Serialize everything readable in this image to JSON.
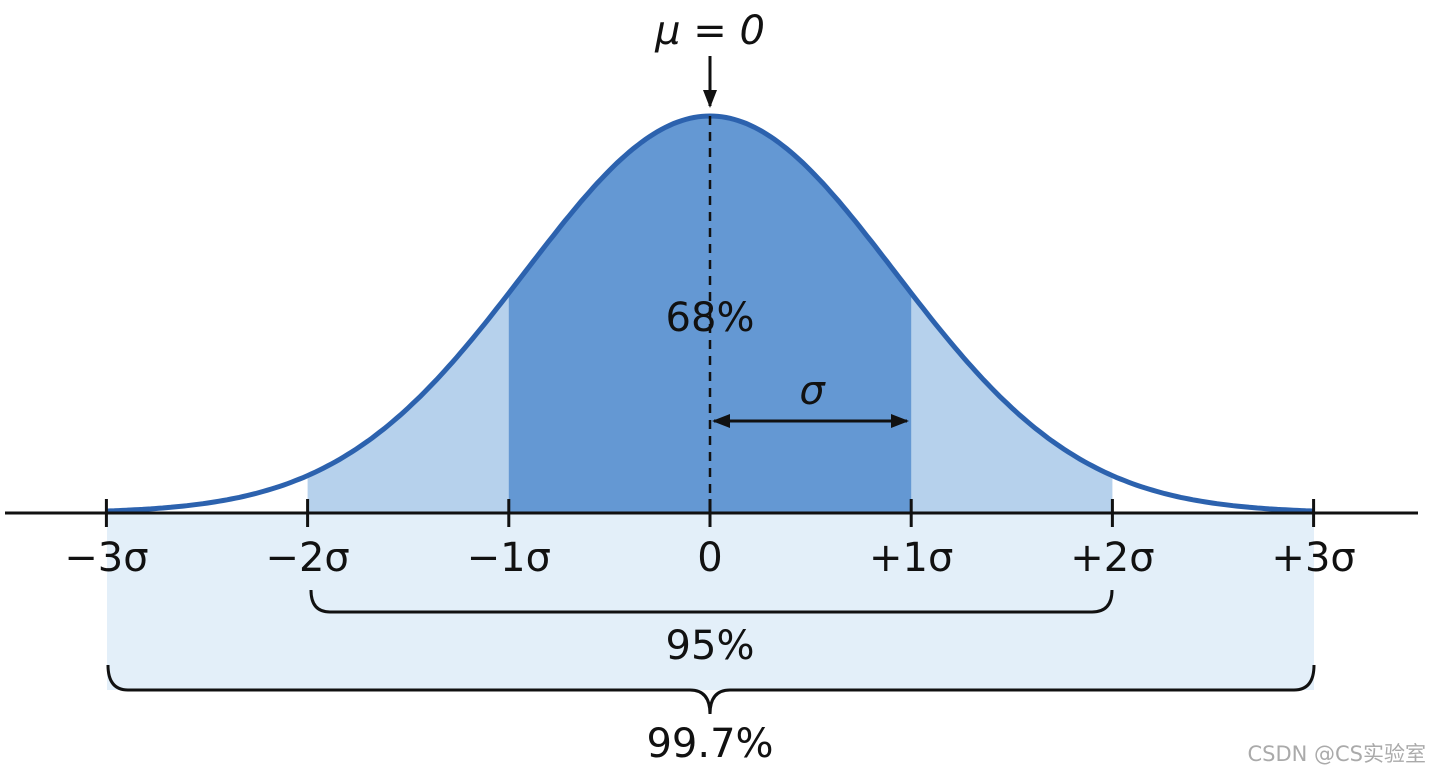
{
  "header": {
    "mean_label": "μ = 0"
  },
  "curve": {
    "center_label": "68%",
    "sigma_label": "σ"
  },
  "axis": {
    "ticks": [
      "−3σ",
      "−2σ",
      "−1σ",
      "0",
      "+1σ",
      "+2σ",
      "+3σ"
    ]
  },
  "brackets": {
    "two_sigma": "95%",
    "three_sigma": "99.7%"
  },
  "watermark": "CSDN @CS实验室"
}
